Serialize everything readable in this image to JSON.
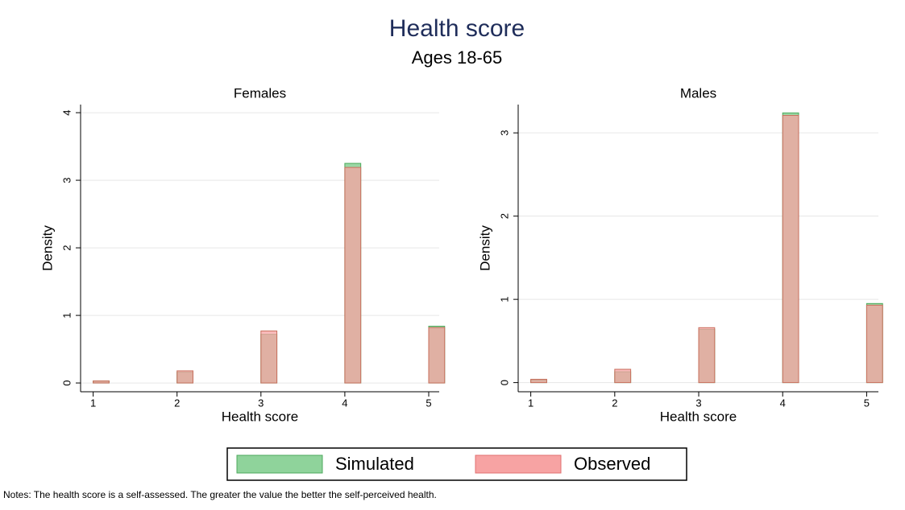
{
  "title": "Health score",
  "subtitle": "Ages 18-65",
  "notes": "Notes: The health score is a self-assessed. The greater the value the better the self-perceived health.",
  "chart_data": [
    {
      "type": "bar",
      "title": "Females",
      "x_label": "Health score",
      "y_label": "Density",
      "x": [
        1,
        2,
        3,
        4,
        5
      ],
      "series": [
        {
          "name": "Simulated",
          "color": "#8fd39b",
          "values": [
            0.03,
            0.16,
            0.72,
            3.25,
            0.84
          ]
        },
        {
          "name": "Observed",
          "color": "#f7a3a3",
          "values": [
            0.03,
            0.18,
            0.77,
            3.19,
            0.82
          ]
        }
      ],
      "xlim": [
        0.85,
        5.125
      ],
      "ylim": [
        -0.13,
        4.12
      ],
      "xticks": [
        1,
        2,
        3,
        4,
        5
      ],
      "yticks": [
        0,
        1,
        2,
        3,
        4
      ],
      "grid": true
    },
    {
      "type": "bar",
      "title": "Males",
      "x_label": "Health score",
      "y_label": "Density",
      "x": [
        1,
        2,
        3,
        4,
        5
      ],
      "series": [
        {
          "name": "Simulated",
          "color": "#8fd39b",
          "values": [
            0.03,
            0.13,
            0.64,
            3.24,
            0.95
          ]
        },
        {
          "name": "Observed",
          "color": "#f7a3a3",
          "values": [
            0.04,
            0.16,
            0.66,
            3.21,
            0.93
          ]
        }
      ],
      "xlim": [
        0.85,
        5.14
      ],
      "ylim": [
        -0.11,
        3.34
      ],
      "xticks": [
        1,
        2,
        3,
        4,
        5
      ],
      "yticks": [
        0,
        1,
        2,
        3
      ],
      "grid": true
    }
  ]
}
